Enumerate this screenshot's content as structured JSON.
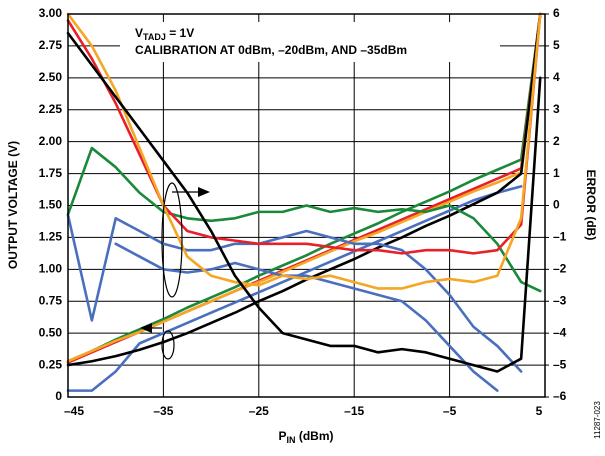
{
  "chart_data": {
    "type": "line",
    "annotations": [
      {
        "text": "V",
        "sub": "TADJ",
        "rest": " = 1V"
      },
      {
        "text": "CALIBRATION AT 0dBm, –20dBm, AND –35dBm"
      }
    ],
    "xlabel": {
      "text": "P",
      "sub": "IN",
      "rest": " (dBm)"
    },
    "ylabel": "OUTPUT VOLTAGE (V)",
    "y2label": "ERROR (dB)",
    "figure_id": "11287-023",
    "grid": true,
    "x": [
      -45,
      -42.5,
      -40,
      -37.5,
      -35,
      -32.5,
      -30,
      -27.5,
      -25,
      -22.5,
      -20,
      -17.5,
      -15,
      -12.5,
      -10,
      -7.5,
      -5,
      -2.5,
      0,
      2.5,
      4.5
    ],
    "xlim": [
      -45,
      5
    ],
    "xticks": [
      {
        "value": -45,
        "label": "–45"
      },
      {
        "value": -35,
        "label": "–35"
      },
      {
        "value": -25,
        "label": "–25"
      },
      {
        "value": -15,
        "label": "–15"
      },
      {
        "value": -5,
        "label": "–5"
      },
      5
    ],
    "ylim": [
      0,
      3
    ],
    "yticks": [
      0,
      0.25,
      {
        "value": 0.5,
        "label": "0.50"
      },
      0.75,
      {
        "value": 1,
        "label": "1.00"
      },
      1.25,
      {
        "value": 1.5,
        "label": "1.50"
      },
      1.75,
      {
        "value": 2,
        "label": "2.00"
      },
      2.25,
      {
        "value": 2.5,
        "label": "2.50"
      },
      2.75,
      {
        "value": 3,
        "label": "3.00"
      }
    ],
    "y2lim": [
      -6,
      6
    ],
    "y2ticks": [
      {
        "value": -6,
        "label": "–6"
      },
      {
        "value": -5,
        "label": "–5"
      },
      {
        "value": -4,
        "label": "–4"
      },
      {
        "value": -3,
        "label": "–3"
      },
      {
        "value": -2,
        "label": "–2"
      },
      {
        "value": -1,
        "label": "–1"
      },
      0,
      1,
      2,
      3,
      4,
      5,
      6
    ],
    "series": [
      {
        "color": "#4a6fbf",
        "values": [
          0.05,
          0.05,
          0.2,
          0.42,
          0.5,
          0.58,
          0.66,
          0.74,
          0.82,
          0.9,
          0.98,
          1.06,
          1.14,
          1.22,
          1.3,
          1.38,
          1.46,
          1.54,
          1.6,
          1.65,
          null
        ]
      },
      {
        "color": "#1a8a3a",
        "values": [
          0.28,
          0.36,
          0.45,
          0.53,
          0.61,
          0.7,
          0.78,
          0.86,
          0.95,
          1.03,
          1.11,
          1.2,
          1.28,
          1.36,
          1.45,
          1.53,
          1.61,
          1.7,
          1.78,
          1.86,
          3.0
        ]
      },
      {
        "color": "#e8202a",
        "values": [
          0.27,
          0.35,
          0.43,
          0.51,
          0.59,
          0.67,
          0.75,
          0.83,
          0.91,
          0.99,
          1.07,
          1.15,
          1.23,
          1.31,
          1.39,
          1.47,
          1.55,
          1.63,
          1.71,
          1.79,
          3.0
        ]
      },
      {
        "color": "#f5a623",
        "values": [
          0.28,
          0.36,
          0.44,
          0.51,
          0.59,
          0.67,
          0.75,
          0.83,
          0.9,
          0.98,
          1.06,
          1.14,
          1.22,
          1.29,
          1.37,
          1.45,
          1.53,
          1.61,
          1.68,
          1.76,
          3.0
        ]
      },
      {
        "color": "#000000",
        "values": [
          0.25,
          0.28,
          0.32,
          0.37,
          0.43,
          0.5,
          0.58,
          0.66,
          0.75,
          0.83,
          0.92,
          1.0,
          1.08,
          1.17,
          1.25,
          1.34,
          1.42,
          1.51,
          1.6,
          1.75,
          3.0
        ]
      },
      {
        "color": "#4a6fbf",
        "axis": "y2",
        "values": [
          -0.3,
          -3.6,
          -0.4,
          -0.8,
          -1.2,
          -1.4,
          -1.4,
          -1.2,
          -1.2,
          -1.0,
          -0.8,
          -1.0,
          -1.2,
          -1.2,
          -1.4,
          -2.0,
          -2.8,
          -3.8,
          -4.4,
          -5.2,
          null
        ]
      },
      {
        "color": "#4a6fbf",
        "axis": "y2",
        "values": [
          null,
          null,
          -1.2,
          -1.6,
          -2.0,
          -2.1,
          -2.0,
          -1.8,
          -2.0,
          -2.2,
          -2.2,
          -2.4,
          -2.6,
          -2.8,
          -3.0,
          -3.6,
          -4.4,
          -5.2,
          -5.8,
          null,
          null
        ]
      },
      {
        "color": "#1a8a3a",
        "axis": "y2",
        "values": [
          -0.28,
          1.8,
          1.2,
          0.4,
          -0.2,
          -0.4,
          -0.48,
          -0.4,
          -0.2,
          -0.2,
          0,
          -0.2,
          -0.08,
          -0.2,
          -0.12,
          -0.2,
          0,
          -0.4,
          -1.2,
          -2.4,
          -2.68
        ]
      },
      {
        "color": "#e8202a",
        "axis": "y2",
        "values": [
          5.8,
          4.6,
          3.2,
          1.6,
          0,
          -0.8,
          -1.0,
          -1.1,
          -1.2,
          -1.2,
          -1.2,
          -1.3,
          -1.4,
          -1.4,
          -1.5,
          -1.4,
          -1.4,
          -1.5,
          -1.4,
          -0.6,
          6
        ]
      },
      {
        "color": "#f5a623",
        "axis": "y2",
        "values": [
          6,
          5,
          3.6,
          1.8,
          0,
          -1.6,
          -2.2,
          -2.4,
          -2.5,
          -2.2,
          -2.3,
          -2.2,
          -2.4,
          -2.6,
          -2.6,
          -2.4,
          -2.3,
          -2.4,
          -2.2,
          -0.4,
          6
        ]
      },
      {
        "color": "#000000",
        "axis": "y2",
        "values": [
          5.4,
          4.4,
          3.4,
          2.4,
          1.4,
          0.4,
          -0.8,
          -2.2,
          -3.2,
          -4.0,
          -4.2,
          -4.4,
          -4.4,
          -4.6,
          -4.5,
          -4.6,
          -4.8,
          -5.0,
          -5.2,
          -4.8,
          4
        ]
      }
    ]
  }
}
